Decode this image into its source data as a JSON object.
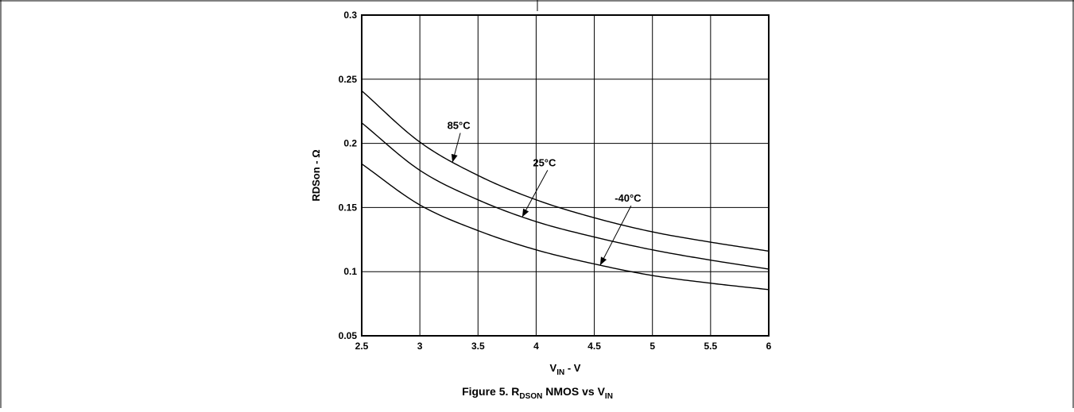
{
  "chart_data": {
    "type": "line",
    "x_axis": {
      "label_main": "V",
      "label_sub": "IN",
      "label_suffix": " - V",
      "range": [
        2.5,
        6
      ],
      "ticks": [
        "2.5",
        "3",
        "3.5",
        "4",
        "4.5",
        "5",
        "5.5",
        "6"
      ]
    },
    "y_axis": {
      "label": "RDSon - Ω",
      "range": [
        0.05,
        0.3
      ],
      "ticks": [
        "0.05",
        "0.1",
        "0.15",
        "0.2",
        "0.25",
        "0.3"
      ]
    },
    "grid": true,
    "x": [
      2.5,
      3,
      3.5,
      4,
      4.5,
      5,
      5.5,
      6
    ],
    "series": [
      {
        "name": "85°C",
        "values": [
          0.241,
          0.201,
          0.175,
          0.156,
          0.142,
          0.131,
          0.123,
          0.116
        ]
      },
      {
        "name": "25°C",
        "values": [
          0.216,
          0.179,
          0.156,
          0.139,
          0.127,
          0.117,
          0.109,
          0.102
        ]
      },
      {
        "name": "-40°C",
        "values": [
          0.184,
          0.152,
          0.132,
          0.117,
          0.106,
          0.097,
          0.091,
          0.086
        ]
      }
    ],
    "annotations": [
      {
        "text": "85°C",
        "series": 0,
        "at_x": 3.28
      },
      {
        "text": "25°C",
        "series": 1,
        "at_x": 3.88
      },
      {
        "text": "-40°C",
        "series": 2,
        "at_x": 4.55
      }
    ],
    "caption": {
      "prefix": "Figure 5. R",
      "sub1": "DSON",
      "middle": " NMOS vs V",
      "sub2": "IN"
    }
  }
}
